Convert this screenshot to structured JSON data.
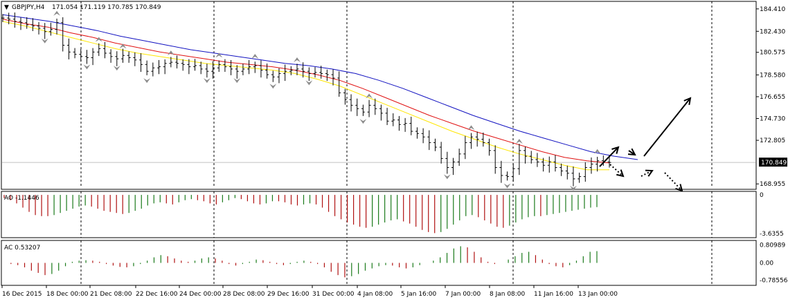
{
  "header": {
    "symbol": "GBPJPY,H4",
    "ohlc": "171.054 171.119 170.785 170.849"
  },
  "subwindows": {
    "ao_label": "AO -1.1446",
    "ac_label": "AC 0.53207"
  },
  "colors": {
    "background": "#ffffff",
    "grid": "#000000",
    "ma_fast": "#ffe600",
    "ma_mid": "#e01010",
    "ma_slow": "#1010c0",
    "ao_up": "#1a7a1a",
    "ao_down": "#b01010",
    "fractal": "#8c8c8c",
    "price_line": "#c0c0c0"
  },
  "chart_data": [
    {
      "type": "ohlc",
      "panel": "main",
      "title": "GBPJPY,H4",
      "y_ticks": [
        "184.410",
        "182.430",
        "180.575",
        "178.580",
        "176.655",
        "174.730",
        "172.805",
        "170.849",
        "168.955"
      ],
      "ylim": [
        168.6,
        184.95
      ],
      "current_price": "170.849",
      "x_ticks": [
        "16 Dec 2015",
        "18 Dec 00:00",
        "21 Dec 08:00",
        "22 Dec 16:00",
        "24 Dec 00:00",
        "28 Dec 08:00",
        "29 Dec 16:00",
        "31 Dec 00:00",
        "4 Jan 08:00",
        "5 Jan 16:00",
        "7 Jan 00:00",
        "8 Jan 08:00",
        "11 Jan 16:00",
        "13 Jan 00:00"
      ],
      "close_path": [
        183.6,
        183.5,
        183.3,
        183.2,
        183.0,
        182.9,
        182.7,
        182.4,
        182.6,
        183.2,
        181.2,
        180.6,
        180.4,
        180.2,
        180.1,
        180.6,
        180.9,
        180.5,
        180.2,
        180.0,
        180.3,
        180.1,
        179.9,
        179.5,
        178.9,
        179.2,
        179.3,
        179.6,
        179.7,
        179.6,
        179.5,
        179.3,
        179.4,
        179.1,
        178.9,
        179.2,
        179.5,
        179.3,
        179.1,
        178.9,
        179.1,
        179.3,
        179.4,
        179.0,
        178.6,
        178.4,
        178.7,
        178.9,
        179.0,
        179.1,
        178.9,
        178.7,
        178.8,
        178.7,
        178.6,
        178.3,
        177.0,
        176.4,
        175.9,
        175.6,
        175.3,
        175.9,
        175.6,
        175.2,
        174.5,
        174.6,
        174.2,
        174.3,
        173.6,
        173.4,
        173.1,
        172.6,
        172.2,
        171.2,
        170.4,
        170.9,
        171.6,
        172.6,
        173.1,
        172.9,
        172.6,
        171.9,
        170.4,
        169.7,
        169.6,
        170.3,
        171.9,
        171.4,
        171.1,
        170.9,
        170.6,
        170.9,
        170.4,
        170.1,
        169.9,
        169.4,
        169.6,
        170.4,
        170.7,
        171.0,
        170.9,
        170.85
      ],
      "ma_fast": [
        183.3,
        182.9,
        182.4,
        181.9,
        181.4,
        180.9,
        180.5,
        180.2,
        179.9,
        179.6,
        179.4,
        179.2,
        179.0,
        178.7,
        178.2,
        177.6,
        176.8,
        176.0,
        175.2,
        174.4,
        173.6,
        172.9,
        172.2,
        171.6,
        171.1,
        170.6,
        170.2,
        170.2
      ],
      "ma_mid": [
        183.5,
        183.1,
        182.8,
        182.3,
        181.9,
        181.4,
        181.0,
        180.6,
        180.3,
        180.0,
        179.7,
        179.5,
        179.3,
        179.0,
        178.6,
        178.1,
        177.4,
        176.6,
        175.8,
        175.0,
        174.3,
        173.6,
        173.0,
        172.4,
        171.8,
        171.3,
        171.0,
        170.8
      ],
      "ma_slow": [
        183.9,
        183.6,
        183.3,
        182.9,
        182.5,
        182.0,
        181.6,
        181.2,
        180.8,
        180.5,
        180.2,
        179.9,
        179.6,
        179.4,
        179.1,
        178.7,
        178.1,
        177.4,
        176.6,
        175.8,
        175.0,
        174.3,
        173.6,
        173.0,
        172.4,
        171.8,
        171.4,
        171.1
      ]
    },
    {
      "type": "bar",
      "panel": "ao",
      "title": "AO -1.1446",
      "y_ticks": [
        "0",
        "-3.6355"
      ],
      "ylim": [
        -3.9,
        0.2
      ],
      "values": [
        -0.3,
        -0.5,
        -0.8,
        -1.2,
        -1.6,
        -1.9,
        -2.0,
        -2.0,
        -1.9,
        -1.7,
        -1.5,
        -1.3,
        -1.1,
        -1.0,
        -1.1,
        -1.3,
        -1.5,
        -1.6,
        -1.7,
        -1.8,
        -1.7,
        -1.5,
        -1.3,
        -1.0,
        -0.8,
        -0.7,
        -0.8,
        -0.9,
        -0.7,
        -0.5,
        -0.4,
        -0.5,
        -0.6,
        -0.8,
        -0.9,
        -0.7,
        -0.5,
        -0.3,
        -0.4,
        -0.6,
        -0.8,
        -0.9,
        -0.8,
        -0.6,
        -0.6,
        -0.7,
        -0.9,
        -1.0,
        -0.9,
        -0.8,
        -0.9,
        -1.2,
        -1.6,
        -2.0,
        -2.3,
        -2.6,
        -2.8,
        -3.0,
        -3.1,
        -3.0,
        -2.8,
        -2.6,
        -2.4,
        -2.3,
        -2.5,
        -2.7,
        -3.0,
        -3.3,
        -3.5,
        -3.6,
        -3.5,
        -3.2,
        -2.8,
        -2.4,
        -2.0,
        -1.9,
        -2.1,
        -2.4,
        -2.7,
        -3.0,
        -3.1,
        -2.9,
        -2.6,
        -2.3,
        -2.1,
        -2.0,
        -2.0,
        -1.9,
        -1.8,
        -1.7,
        -1.6,
        -1.5,
        -1.4,
        -1.3,
        -1.2,
        -1.15
      ]
    },
    {
      "type": "bar",
      "panel": "ac",
      "title": "AC 0.53207",
      "y_ticks": [
        "0.80989",
        "0.00",
        "-0.78556"
      ],
      "ylim": [
        -0.95,
        0.95
      ],
      "values": [
        0.0,
        -0.05,
        -0.1,
        -0.2,
        -0.35,
        -0.45,
        -0.55,
        -0.5,
        -0.35,
        -0.15,
        0.05,
        0.1,
        0.12,
        0.1,
        0.05,
        -0.05,
        -0.12,
        -0.18,
        -0.2,
        -0.15,
        -0.05,
        0.1,
        0.25,
        0.35,
        0.3,
        0.2,
        0.1,
        0.05,
        0.1,
        0.2,
        0.25,
        0.2,
        0.1,
        -0.05,
        -0.12,
        -0.05,
        0.05,
        0.15,
        0.12,
        0.05,
        -0.05,
        -0.1,
        -0.05,
        0.05,
        0.1,
        0.05,
        -0.05,
        -0.2,
        -0.4,
        -0.55,
        -0.65,
        -0.6,
        -0.5,
        -0.35,
        -0.25,
        -0.15,
        -0.1,
        -0.12,
        -0.2,
        -0.25,
        -0.2,
        -0.1,
        0.0,
        0.1,
        0.25,
        0.45,
        0.65,
        0.75,
        0.7,
        0.5,
        0.25,
        0.05,
        -0.05,
        0.0,
        0.15,
        0.3,
        0.45,
        0.5,
        0.35,
        0.15,
        -0.05,
        -0.15,
        -0.2,
        -0.1,
        0.1,
        0.3,
        0.5,
        0.53
      ]
    }
  ]
}
